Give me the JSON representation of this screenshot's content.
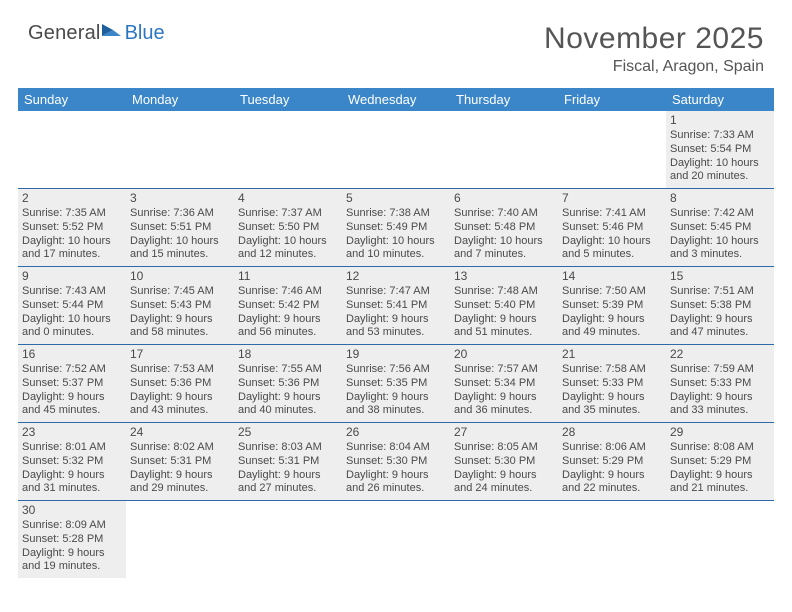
{
  "logo": {
    "text1": "General",
    "text2": "Blue"
  },
  "title": "November 2025",
  "location": "Fiscal, Aragon, Spain",
  "colors": {
    "header_bg": "#3a86c8",
    "header_text": "#ffffff",
    "cell_bg": "#eeeeee",
    "row_border": "#2d6aa8",
    "brand_blue": "#2d77c2",
    "text": "#4a4a4a"
  },
  "typography": {
    "title_fontsize": 30,
    "location_fontsize": 16,
    "dayheader_fontsize": 13,
    "daynum_fontsize": 12,
    "cell_fontsize": 11
  },
  "day_headers": [
    "Sunday",
    "Monday",
    "Tuesday",
    "Wednesday",
    "Thursday",
    "Friday",
    "Saturday"
  ],
  "weeks": [
    [
      null,
      null,
      null,
      null,
      null,
      null,
      {
        "n": "1",
        "sunrise": "Sunrise: 7:33 AM",
        "sunset": "Sunset: 5:54 PM",
        "dl1": "Daylight: 10 hours",
        "dl2": "and 20 minutes."
      }
    ],
    [
      {
        "n": "2",
        "sunrise": "Sunrise: 7:35 AM",
        "sunset": "Sunset: 5:52 PM",
        "dl1": "Daylight: 10 hours",
        "dl2": "and 17 minutes."
      },
      {
        "n": "3",
        "sunrise": "Sunrise: 7:36 AM",
        "sunset": "Sunset: 5:51 PM",
        "dl1": "Daylight: 10 hours",
        "dl2": "and 15 minutes."
      },
      {
        "n": "4",
        "sunrise": "Sunrise: 7:37 AM",
        "sunset": "Sunset: 5:50 PM",
        "dl1": "Daylight: 10 hours",
        "dl2": "and 12 minutes."
      },
      {
        "n": "5",
        "sunrise": "Sunrise: 7:38 AM",
        "sunset": "Sunset: 5:49 PM",
        "dl1": "Daylight: 10 hours",
        "dl2": "and 10 minutes."
      },
      {
        "n": "6",
        "sunrise": "Sunrise: 7:40 AM",
        "sunset": "Sunset: 5:48 PM",
        "dl1": "Daylight: 10 hours",
        "dl2": "and 7 minutes."
      },
      {
        "n": "7",
        "sunrise": "Sunrise: 7:41 AM",
        "sunset": "Sunset: 5:46 PM",
        "dl1": "Daylight: 10 hours",
        "dl2": "and 5 minutes."
      },
      {
        "n": "8",
        "sunrise": "Sunrise: 7:42 AM",
        "sunset": "Sunset: 5:45 PM",
        "dl1": "Daylight: 10 hours",
        "dl2": "and 3 minutes."
      }
    ],
    [
      {
        "n": "9",
        "sunrise": "Sunrise: 7:43 AM",
        "sunset": "Sunset: 5:44 PM",
        "dl1": "Daylight: 10 hours",
        "dl2": "and 0 minutes."
      },
      {
        "n": "10",
        "sunrise": "Sunrise: 7:45 AM",
        "sunset": "Sunset: 5:43 PM",
        "dl1": "Daylight: 9 hours",
        "dl2": "and 58 minutes."
      },
      {
        "n": "11",
        "sunrise": "Sunrise: 7:46 AM",
        "sunset": "Sunset: 5:42 PM",
        "dl1": "Daylight: 9 hours",
        "dl2": "and 56 minutes."
      },
      {
        "n": "12",
        "sunrise": "Sunrise: 7:47 AM",
        "sunset": "Sunset: 5:41 PM",
        "dl1": "Daylight: 9 hours",
        "dl2": "and 53 minutes."
      },
      {
        "n": "13",
        "sunrise": "Sunrise: 7:48 AM",
        "sunset": "Sunset: 5:40 PM",
        "dl1": "Daylight: 9 hours",
        "dl2": "and 51 minutes."
      },
      {
        "n": "14",
        "sunrise": "Sunrise: 7:50 AM",
        "sunset": "Sunset: 5:39 PM",
        "dl1": "Daylight: 9 hours",
        "dl2": "and 49 minutes."
      },
      {
        "n": "15",
        "sunrise": "Sunrise: 7:51 AM",
        "sunset": "Sunset: 5:38 PM",
        "dl1": "Daylight: 9 hours",
        "dl2": "and 47 minutes."
      }
    ],
    [
      {
        "n": "16",
        "sunrise": "Sunrise: 7:52 AM",
        "sunset": "Sunset: 5:37 PM",
        "dl1": "Daylight: 9 hours",
        "dl2": "and 45 minutes."
      },
      {
        "n": "17",
        "sunrise": "Sunrise: 7:53 AM",
        "sunset": "Sunset: 5:36 PM",
        "dl1": "Daylight: 9 hours",
        "dl2": "and 43 minutes."
      },
      {
        "n": "18",
        "sunrise": "Sunrise: 7:55 AM",
        "sunset": "Sunset: 5:36 PM",
        "dl1": "Daylight: 9 hours",
        "dl2": "and 40 minutes."
      },
      {
        "n": "19",
        "sunrise": "Sunrise: 7:56 AM",
        "sunset": "Sunset: 5:35 PM",
        "dl1": "Daylight: 9 hours",
        "dl2": "and 38 minutes."
      },
      {
        "n": "20",
        "sunrise": "Sunrise: 7:57 AM",
        "sunset": "Sunset: 5:34 PM",
        "dl1": "Daylight: 9 hours",
        "dl2": "and 36 minutes."
      },
      {
        "n": "21",
        "sunrise": "Sunrise: 7:58 AM",
        "sunset": "Sunset: 5:33 PM",
        "dl1": "Daylight: 9 hours",
        "dl2": "and 35 minutes."
      },
      {
        "n": "22",
        "sunrise": "Sunrise: 7:59 AM",
        "sunset": "Sunset: 5:33 PM",
        "dl1": "Daylight: 9 hours",
        "dl2": "and 33 minutes."
      }
    ],
    [
      {
        "n": "23",
        "sunrise": "Sunrise: 8:01 AM",
        "sunset": "Sunset: 5:32 PM",
        "dl1": "Daylight: 9 hours",
        "dl2": "and 31 minutes."
      },
      {
        "n": "24",
        "sunrise": "Sunrise: 8:02 AM",
        "sunset": "Sunset: 5:31 PM",
        "dl1": "Daylight: 9 hours",
        "dl2": "and 29 minutes."
      },
      {
        "n": "25",
        "sunrise": "Sunrise: 8:03 AM",
        "sunset": "Sunset: 5:31 PM",
        "dl1": "Daylight: 9 hours",
        "dl2": "and 27 minutes."
      },
      {
        "n": "26",
        "sunrise": "Sunrise: 8:04 AM",
        "sunset": "Sunset: 5:30 PM",
        "dl1": "Daylight: 9 hours",
        "dl2": "and 26 minutes."
      },
      {
        "n": "27",
        "sunrise": "Sunrise: 8:05 AM",
        "sunset": "Sunset: 5:30 PM",
        "dl1": "Daylight: 9 hours",
        "dl2": "and 24 minutes."
      },
      {
        "n": "28",
        "sunrise": "Sunrise: 8:06 AM",
        "sunset": "Sunset: 5:29 PM",
        "dl1": "Daylight: 9 hours",
        "dl2": "and 22 minutes."
      },
      {
        "n": "29",
        "sunrise": "Sunrise: 8:08 AM",
        "sunset": "Sunset: 5:29 PM",
        "dl1": "Daylight: 9 hours",
        "dl2": "and 21 minutes."
      }
    ],
    [
      {
        "n": "30",
        "sunrise": "Sunrise: 8:09 AM",
        "sunset": "Sunset: 5:28 PM",
        "dl1": "Daylight: 9 hours",
        "dl2": "and 19 minutes."
      },
      null,
      null,
      null,
      null,
      null,
      null
    ]
  ]
}
